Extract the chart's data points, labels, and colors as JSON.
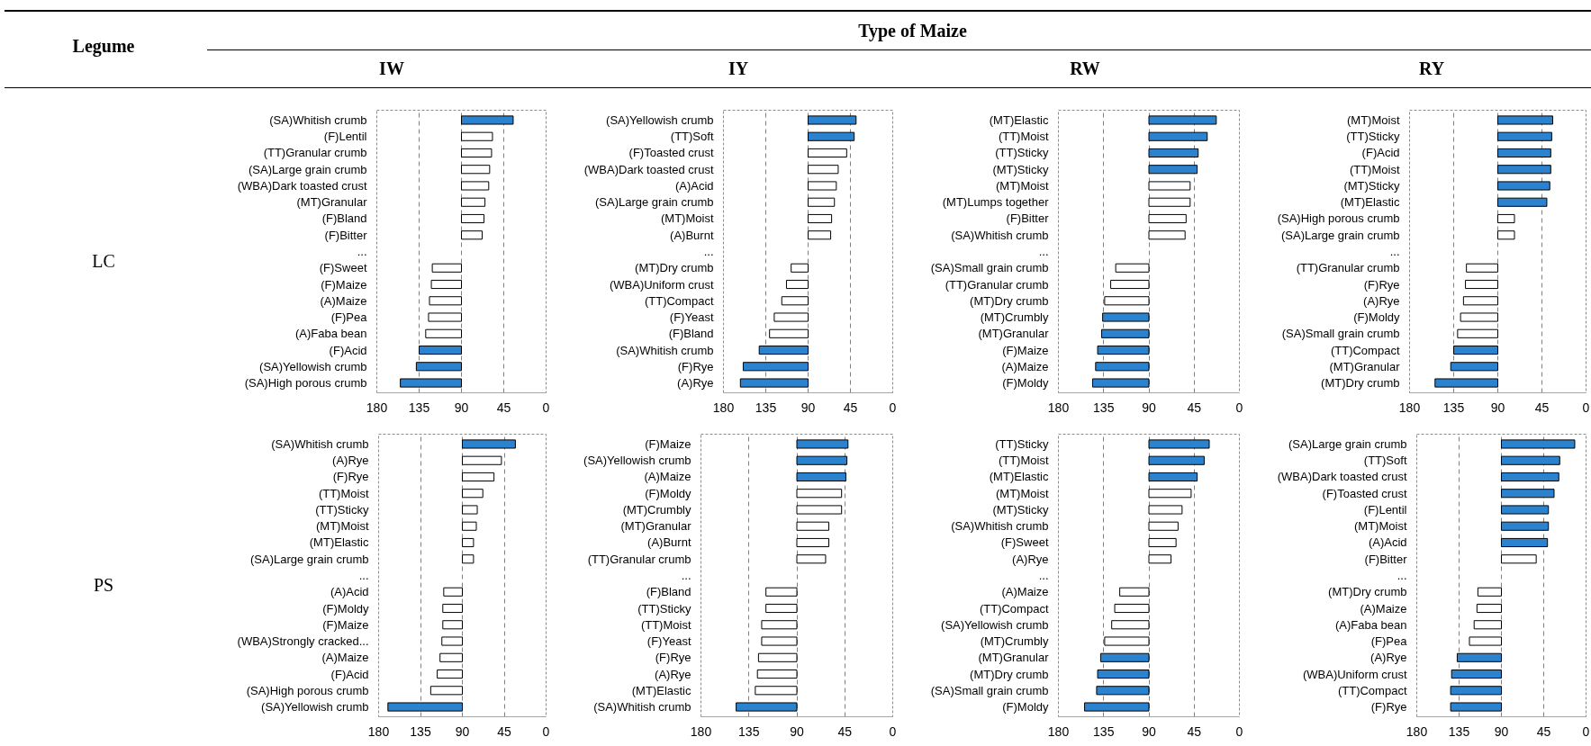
{
  "chart_data": [
    {
      "type": "other",
      "title": "Type of Maize",
      "ylabel": "Legume",
      "categories": [
        "IW",
        "IY",
        "RW",
        "RY"
      ],
      "y_categories": [
        "LC",
        "PS"
      ]
    },
    {
      "type": "bar",
      "orientation": "horizontal",
      "categories": [
        "(SA)Whitish crumb",
        "(F)Lentil",
        "(TT)Granular crumb",
        "(SA)Large grain crumb",
        "(WBA)Dark toasted crust",
        "(MT)Granular",
        "(F)Bland",
        "(F)Bitter",
        "...",
        "(F)Sweet",
        "(F)Maize",
        "(A)Maize",
        "(F)Pea",
        "(A)Faba bean",
        "(F)Acid",
        "(SA)Yellowish crumb",
        "(SA)High porous crumb"
      ],
      "base": [
        90,
        90,
        90,
        90,
        90,
        90,
        90,
        90,
        null,
        90,
        90,
        90,
        90,
        90,
        90,
        90,
        90
      ],
      "values": [
        -55,
        -33,
        -32,
        -30,
        -29,
        -25,
        -24,
        -22,
        null,
        31,
        32,
        34,
        35,
        38,
        45,
        48,
        65
      ],
      "colors": [
        "#2b83d0",
        "#ffffff",
        "#ffffff",
        "#ffffff",
        "#ffffff",
        "#ffffff",
        "#ffffff",
        "#ffffff",
        "#ffffff",
        "#ffffff",
        "#ffffff",
        "#ffffff",
        "#ffffff",
        "#ffffff",
        "#2b83d0",
        "#2b83d0",
        "#2b83d0"
      ],
      "xlim": [
        180,
        0
      ],
      "xticks": [
        180,
        135,
        90,
        45,
        0
      ],
      "grid": "x"
    },
    {
      "type": "bar",
      "orientation": "horizontal",
      "categories": [
        "(SA)Yellowish crumb",
        "(TT)Soft",
        "(F)Toasted crust",
        "(WBA)Dark toasted crust",
        "(A)Acid",
        "(SA)Large grain crumb",
        "(MT)Moist",
        "(A)Burnt",
        "...",
        "(MT)Dry crumb",
        "(WBA)Uniform crust",
        "(TT)Compact",
        "(F)Yeast",
        "(F)Bland",
        "(SA)Whitish crumb",
        "(F)Rye",
        "(A)Rye"
      ],
      "base": [
        90,
        90,
        90,
        90,
        90,
        90,
        90,
        90,
        null,
        90,
        90,
        90,
        90,
        90,
        90,
        90,
        90
      ],
      "values": [
        -51,
        -49,
        -41,
        -32,
        -30,
        -28,
        -25,
        -24,
        null,
        18,
        23,
        28,
        36,
        41,
        52,
        69,
        72
      ],
      "colors": [
        "#2b83d0",
        "#2b83d0",
        "#ffffff",
        "#ffffff",
        "#ffffff",
        "#ffffff",
        "#ffffff",
        "#ffffff",
        "#ffffff",
        "#ffffff",
        "#ffffff",
        "#ffffff",
        "#ffffff",
        "#ffffff",
        "#2b83d0",
        "#2b83d0",
        "#2b83d0"
      ],
      "xlim": [
        180,
        0
      ],
      "xticks": [
        180,
        135,
        90,
        45,
        0
      ],
      "grid": "x"
    },
    {
      "type": "bar",
      "orientation": "horizontal",
      "categories": [
        "(MT)Elastic",
        "(TT)Moist",
        "(TT)Sticky",
        "(MT)Sticky",
        "(MT)Moist",
        "(MT)Lumps together",
        "(F)Bitter",
        "(SA)Whitish crumb",
        "...",
        "(SA)Small grain crumb",
        "(TT)Granular crumb",
        "(MT)Dry crumb",
        "(MT)Crumbly",
        "(MT)Granular",
        "(F)Maize",
        "(A)Maize",
        "(F)Moldy"
      ],
      "base": [
        90,
        90,
        90,
        90,
        90,
        90,
        90,
        90,
        null,
        90,
        90,
        90,
        90,
        90,
        90,
        90,
        90
      ],
      "values": [
        -67,
        -58,
        -49,
        -48,
        -41,
        -41,
        -37,
        -36,
        null,
        33,
        38,
        44,
        46,
        47,
        51,
        53,
        56
      ],
      "colors": [
        "#2b83d0",
        "#2b83d0",
        "#2b83d0",
        "#2b83d0",
        "#ffffff",
        "#ffffff",
        "#ffffff",
        "#ffffff",
        "#ffffff",
        "#ffffff",
        "#ffffff",
        "#ffffff",
        "#2b83d0",
        "#2b83d0",
        "#2b83d0",
        "#2b83d0",
        "#2b83d0"
      ],
      "xlim": [
        180,
        0
      ],
      "xticks": [
        180,
        135,
        90,
        45,
        0
      ],
      "grid": "x"
    },
    {
      "type": "bar",
      "orientation": "horizontal",
      "categories": [
        "(MT)Moist",
        "(TT)Sticky",
        "(F)Acid",
        "(TT)Moist",
        "(MT)Sticky",
        "(MT)Elastic",
        "(SA)High porous crumb",
        "(SA)Large grain crumb",
        "...",
        "(TT)Granular crumb",
        "(F)Rye",
        "(A)Rye",
        "(F)Moldy",
        "(SA)Small grain crumb",
        "(TT)Compact",
        "(MT)Granular",
        "(MT)Dry crumb"
      ],
      "base": [
        90,
        90,
        90,
        90,
        90,
        90,
        90,
        90,
        null,
        90,
        90,
        90,
        90,
        90,
        90,
        90,
        90
      ],
      "values": [
        -56,
        -55,
        -54,
        -54,
        -53,
        -50,
        -17,
        -17,
        null,
        32,
        33,
        35,
        38,
        41,
        45,
        48,
        64
      ],
      "colors": [
        "#2b83d0",
        "#2b83d0",
        "#2b83d0",
        "#2b83d0",
        "#2b83d0",
        "#2b83d0",
        "#ffffff",
        "#ffffff",
        "#ffffff",
        "#ffffff",
        "#ffffff",
        "#ffffff",
        "#ffffff",
        "#ffffff",
        "#2b83d0",
        "#2b83d0",
        "#2b83d0"
      ],
      "xlim": [
        180,
        0
      ],
      "xticks": [
        180,
        135,
        90,
        45,
        0
      ],
      "grid": "x"
    },
    {
      "type": "bar",
      "orientation": "horizontal",
      "categories": [
        "(SA)Whitish crumb",
        "(A)Rye",
        "(F)Rye",
        "(TT)Moist",
        "(TT)Sticky",
        "(MT)Moist",
        "(MT)Elastic",
        "(SA)Large grain crumb",
        "...",
        "(A)Acid",
        "(F)Moldy",
        "(F)Maize",
        "(WBA)Strongly cracked...",
        "(A)Maize",
        "(F)Acid",
        "(SA)High porous crumb",
        "(SA)Yellowish crumb"
      ],
      "base": [
        90,
        90,
        90,
        90,
        90,
        90,
        90,
        90,
        null,
        90,
        90,
        90,
        90,
        90,
        90,
        90,
        90
      ],
      "values": [
        -57,
        -42,
        -34,
        -22,
        -16,
        -15,
        -12,
        -12,
        null,
        20,
        21,
        21,
        22,
        24,
        27,
        34,
        80
      ],
      "colors": [
        "#2b83d0",
        "#ffffff",
        "#ffffff",
        "#ffffff",
        "#ffffff",
        "#ffffff",
        "#ffffff",
        "#ffffff",
        "#ffffff",
        "#ffffff",
        "#ffffff",
        "#ffffff",
        "#ffffff",
        "#ffffff",
        "#ffffff",
        "#ffffff",
        "#2b83d0"
      ],
      "xlim": [
        180,
        0
      ],
      "xticks": [
        180,
        135,
        90,
        45,
        0
      ],
      "grid": "x"
    },
    {
      "type": "bar",
      "orientation": "horizontal",
      "categories": [
        "(F)Maize",
        "(SA)Yellowish crumb",
        "(A)Maize",
        "(F)Moldy",
        "(MT)Crumbly",
        "(MT)Granular",
        "(A)Burnt",
        "(TT)Granular crumb",
        "...",
        "(F)Bland",
        "(TT)Sticky",
        "(TT)Moist",
        "(F)Yeast",
        "(F)Rye",
        "(A)Rye",
        "(MT)Elastic",
        "(SA)Whitish crumb"
      ],
      "base": [
        90,
        90,
        90,
        90,
        90,
        90,
        90,
        90,
        null,
        90,
        90,
        90,
        90,
        90,
        90,
        90,
        90
      ],
      "values": [
        -48,
        -47,
        -46,
        -42,
        -42,
        -30,
        -30,
        -27,
        null,
        29,
        29,
        33,
        33,
        36,
        37,
        39,
        57
      ],
      "colors": [
        "#2b83d0",
        "#2b83d0",
        "#2b83d0",
        "#ffffff",
        "#ffffff",
        "#ffffff",
        "#ffffff",
        "#ffffff",
        "#ffffff",
        "#ffffff",
        "#ffffff",
        "#ffffff",
        "#ffffff",
        "#ffffff",
        "#ffffff",
        "#ffffff",
        "#2b83d0"
      ],
      "xlim": [
        180,
        0
      ],
      "xticks": [
        180,
        135,
        90,
        45,
        0
      ],
      "grid": "x"
    },
    {
      "type": "bar",
      "orientation": "horizontal",
      "categories": [
        "(TT)Sticky",
        "(TT)Moist",
        "(MT)Elastic",
        "(MT)Moist",
        "(MT)Sticky",
        "(SA)Whitish crumb",
        "(F)Sweet",
        "(A)Rye",
        "...",
        "(A)Maize",
        "(TT)Compact",
        "(SA)Yellowish crumb",
        "(MT)Crumbly",
        "(MT)Granular",
        "(MT)Dry crumb",
        "(SA)Small grain crumb",
        "(F)Moldy"
      ],
      "base": [
        90,
        90,
        90,
        90,
        90,
        90,
        90,
        90,
        null,
        90,
        90,
        90,
        90,
        90,
        90,
        90,
        90
      ],
      "values": [
        -60,
        -55,
        -48,
        -42,
        -33,
        -29,
        -27,
        -22,
        null,
        29,
        34,
        37,
        44,
        48,
        51,
        52,
        64
      ],
      "colors": [
        "#2b83d0",
        "#2b83d0",
        "#2b83d0",
        "#ffffff",
        "#ffffff",
        "#ffffff",
        "#ffffff",
        "#ffffff",
        "#ffffff",
        "#ffffff",
        "#ffffff",
        "#ffffff",
        "#ffffff",
        "#2b83d0",
        "#2b83d0",
        "#2b83d0",
        "#2b83d0"
      ],
      "xlim": [
        180,
        0
      ],
      "xticks": [
        180,
        135,
        90,
        45,
        0
      ],
      "grid": "x"
    },
    {
      "type": "bar",
      "orientation": "horizontal",
      "categories": [
        "(SA)Large grain crumb",
        "(TT)Soft",
        "(WBA)Dark toasted crust",
        "(F)Toasted crust",
        "(F)Lentil",
        "(MT)Moist",
        "(A)Acid",
        "(F)Bitter",
        "...",
        "(MT)Dry crumb",
        "(A)Maize",
        "(A)Faba bean",
        "(F)Pea",
        "(A)Rye",
        "(WBA)Uniform crust",
        "(TT)Compact",
        "(F)Rye"
      ],
      "base": [
        90,
        90,
        90,
        90,
        90,
        90,
        90,
        90,
        null,
        90,
        90,
        90,
        90,
        90,
        90,
        90,
        90
      ],
      "values": [
        -78,
        -62,
        -61,
        -56,
        -50,
        -50,
        -49,
        -37,
        null,
        25,
        26,
        29,
        34,
        47,
        53,
        54,
        54
      ],
      "colors": [
        "#2b83d0",
        "#2b83d0",
        "#2b83d0",
        "#2b83d0",
        "#2b83d0",
        "#2b83d0",
        "#2b83d0",
        "#ffffff",
        "#ffffff",
        "#ffffff",
        "#ffffff",
        "#ffffff",
        "#ffffff",
        "#2b83d0",
        "#2b83d0",
        "#2b83d0",
        "#2b83d0"
      ],
      "xlim": [
        180,
        0
      ],
      "xticks": [
        180,
        135,
        90,
        45,
        0
      ],
      "grid": "x"
    }
  ]
}
